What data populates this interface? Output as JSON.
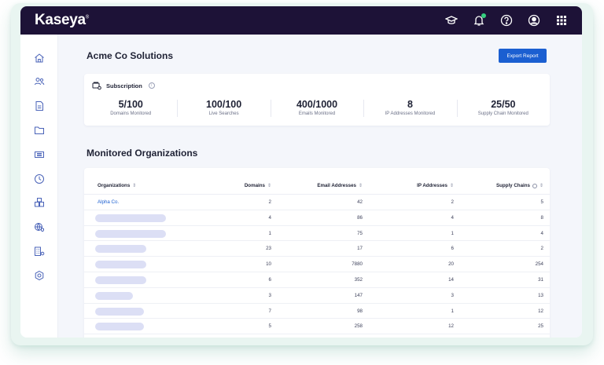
{
  "app": {
    "logo": "Kaseya",
    "logo_mark": "®"
  },
  "topbar": {
    "icons": [
      "graduation-cap-icon",
      "bell-icon",
      "help-icon",
      "user-icon",
      "apps-grid-icon"
    ]
  },
  "sidebar": {
    "items": [
      "home-icon",
      "users-icon",
      "document-icon",
      "folder-icon",
      "ticket-icon",
      "clock-icon",
      "boxes-icon",
      "shield-icon",
      "building-icon",
      "settings-icon"
    ]
  },
  "page": {
    "title": "Acme Co Solutions",
    "export_label": "Export Report"
  },
  "subscription": {
    "label": "Subscription",
    "info": "i",
    "stats": [
      {
        "value": "5/100",
        "caption": "Domains Monitored"
      },
      {
        "value": "100/100",
        "caption": "Live Searches"
      },
      {
        "value": "400/1000",
        "caption": "Emails Monitored"
      },
      {
        "value": "8",
        "caption": "IP Addresses Monitored"
      },
      {
        "value": "25/50",
        "caption": "Supply Chain Monitored"
      }
    ]
  },
  "organizations": {
    "title": "Monitored Organizations",
    "columns": {
      "org": "Organizations",
      "domains": "Domains",
      "email": "Email Addresses",
      "ip": "IP Addresses",
      "supply": "Supply Chains"
    },
    "sort_glyph": "⇕",
    "rows": [
      {
        "name": "Alpha Co.",
        "domains": "2",
        "email": "42",
        "ip": "2",
        "supply": "5"
      },
      {
        "name": "",
        "domains": "4",
        "email": "86",
        "ip": "4",
        "supply": "8"
      },
      {
        "name": "",
        "domains": "1",
        "email": "75",
        "ip": "1",
        "supply": "4"
      },
      {
        "name": "",
        "domains": "23",
        "email": "17",
        "ip": "6",
        "supply": "2"
      },
      {
        "name": "",
        "domains": "10",
        "email": "7880",
        "ip": "20",
        "supply": "254"
      },
      {
        "name": "",
        "domains": "6",
        "email": "352",
        "ip": "14",
        "supply": "31"
      },
      {
        "name": "",
        "domains": "3",
        "email": "147",
        "ip": "3",
        "supply": "13"
      },
      {
        "name": "",
        "domains": "7",
        "email": "98",
        "ip": "1",
        "supply": "12"
      },
      {
        "name": "",
        "domains": "5",
        "email": "258",
        "ip": "12",
        "supply": "25"
      }
    ]
  },
  "colors": {
    "topbar": "#1d1237",
    "accent": "#1b5fd1",
    "page_bg": "#f4f6fb",
    "placeholder": "#dcdff5"
  }
}
